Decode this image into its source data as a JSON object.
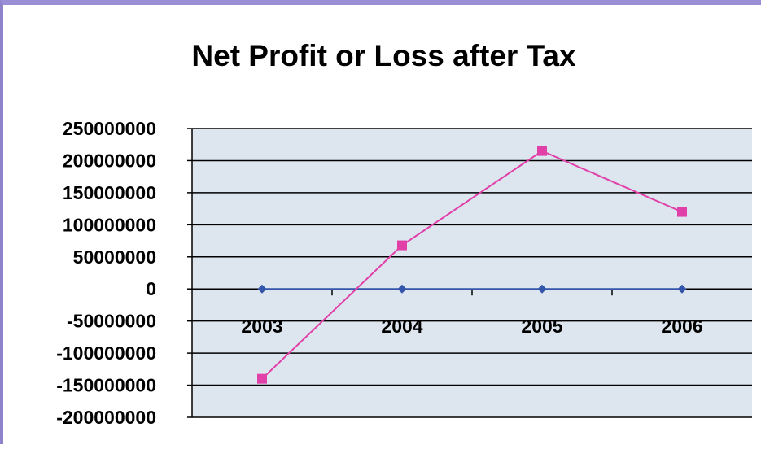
{
  "chart_data": {
    "type": "line",
    "title": "Net Profit or Loss after Tax",
    "xlabel": "",
    "ylabel": "",
    "categories": [
      "2003",
      "2004",
      "2005",
      "2006"
    ],
    "ylim": [
      -200000000,
      250000000
    ],
    "yticks": [
      "250000000",
      "200000000",
      "150000000",
      "100000000",
      "50000000",
      "0",
      "-50000000",
      "-100000000",
      "-150000000",
      "-200000000"
    ],
    "grid": true,
    "legend": "none",
    "series": [
      {
        "values": [
          0,
          0,
          0,
          0
        ],
        "color": "#3355aa",
        "marker": "diamond"
      },
      {
        "values": [
          -140000000,
          68000000,
          215000000,
          120000000
        ],
        "color": "#e040a8",
        "marker": "square"
      }
    ],
    "colors": {
      "plot_bg": "#dde5ef",
      "grid": "#000000"
    }
  }
}
